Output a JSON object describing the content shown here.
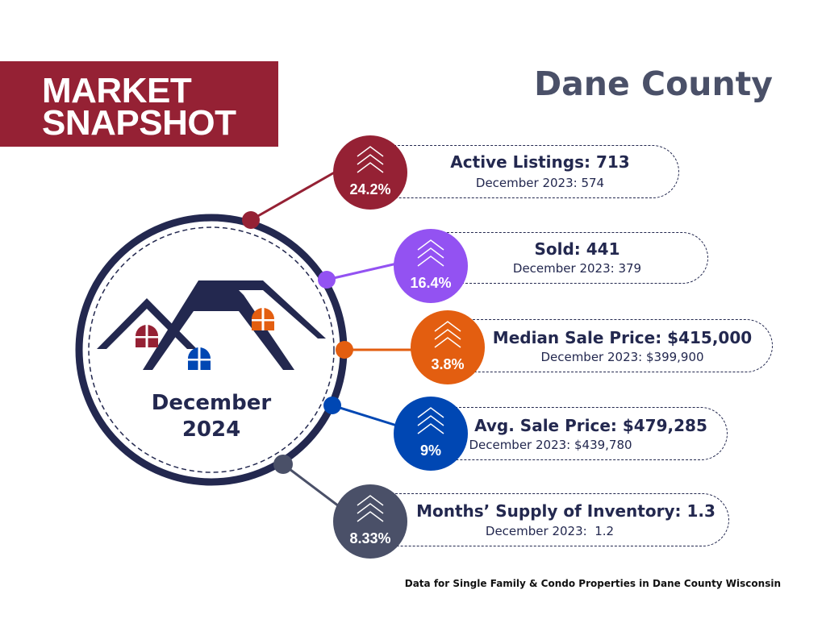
{
  "banner": {
    "line1": "MARKET",
    "line2": "SNAPSHOT"
  },
  "county": "Dane County",
  "center": {
    "month": "December",
    "year": "2024"
  },
  "metrics": [
    {
      "title": "Active Listings: 713",
      "sub": "December 2023: 574",
      "pct": "24.2%",
      "color": "#952134",
      "icon": "chevron-up-icon"
    },
    {
      "title": "Sold: 441",
      "sub": "December 2023: 379",
      "pct": "16.4%",
      "color": "#9352f2",
      "icon": "chevron-up-icon"
    },
    {
      "title": "Median Sale Price: $415,000",
      "sub": "December 2023: $399,900",
      "pct": "3.8%",
      "color": "#e35e10",
      "icon": "chevron-up-icon"
    },
    {
      "title": "Avg. Sale Price: $479,285",
      "sub": "December 2023: $439,780",
      "pct": "9%",
      "color": "#0047b3",
      "icon": "chevron-up-icon"
    },
    {
      "title": "Months’ Supply of Inventory: 1.3",
      "sub": "December 2023:  1.2",
      "pct": "8.33%",
      "color": "#4a5068",
      "icon": "chevron-up-icon"
    }
  ],
  "colors": {
    "navy": "#23284f",
    "banner": "#952134",
    "window_red": "#952134",
    "window_blue": "#0047b3",
    "window_orange": "#e35e10"
  },
  "footnote": "Data for Single Family & Condo Properties in Dane County Wisconsin"
}
